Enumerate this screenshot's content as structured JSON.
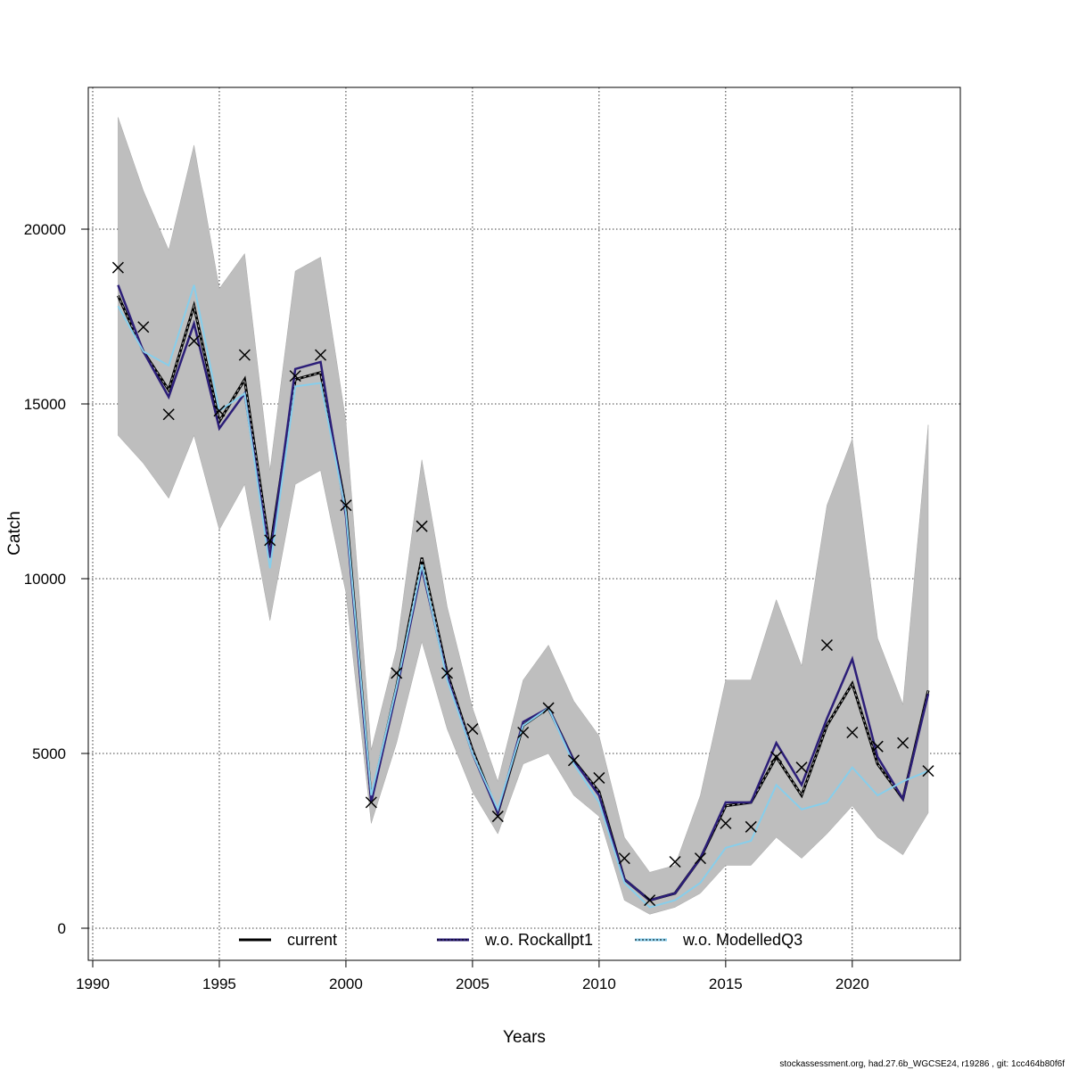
{
  "footer": "stockassessment.org, had.27.6b_WGCSE24, r19286 , git: 1cc464b80f6f",
  "chart_data": {
    "type": "line",
    "xlabel": "Years",
    "ylabel": "Catch",
    "xlim": [
      1990,
      2023
    ],
    "ylim": [
      0,
      23000
    ],
    "xticks": [
      1990,
      1995,
      2000,
      2005,
      2010,
      2015,
      2020
    ],
    "yticks": [
      0,
      5000,
      10000,
      15000,
      20000
    ],
    "grid": true,
    "legend_position": "bottom",
    "x": [
      1991,
      1992,
      1993,
      1994,
      1995,
      1996,
      1997,
      1998,
      1999,
      2000,
      2001,
      2002,
      2003,
      2004,
      2005,
      2006,
      2007,
      2008,
      2009,
      2010,
      2011,
      2012,
      2013,
      2014,
      2015,
      2016,
      2017,
      2018,
      2019,
      2020,
      2021,
      2022,
      2023
    ],
    "band_upper": [
      23200,
      21100,
      19400,
      22400,
      18300,
      19300,
      13100,
      18800,
      19200,
      14500,
      5100,
      8000,
      13400,
      9200,
      6300,
      4200,
      7100,
      8100,
      6500,
      5500,
      2600,
      1600,
      1800,
      3800,
      7100,
      7100,
      9400,
      7500,
      12100,
      14000,
      8300,
      6400,
      14400
    ],
    "band_lower": [
      14100,
      13300,
      12300,
      14100,
      11400,
      12700,
      8800,
      12700,
      13100,
      9600,
      3000,
      5300,
      8200,
      5700,
      3900,
      2700,
      4700,
      5000,
      3800,
      3200,
      800,
      400,
      600,
      1000,
      1800,
      1800,
      2600,
      2000,
      2700,
      3500,
      2600,
      2100,
      3300
    ],
    "series": [
      {
        "name": "current",
        "color": "#000000",
        "values": [
          18100,
          16500,
          15400,
          17800,
          14500,
          15700,
          10800,
          15700,
          15900,
          12000,
          3700,
          6900,
          10600,
          7300,
          5100,
          3300,
          5800,
          6300,
          4800,
          3900,
          1400,
          800,
          1000,
          2000,
          3500,
          3600,
          4900,
          3800,
          5800,
          7000,
          4700,
          3700,
          6800
        ]
      },
      {
        "name": "w.o. Rockallpt1",
        "color": "#2c1e78",
        "values": [
          18400,
          16500,
          15200,
          17300,
          14300,
          15300,
          10600,
          16000,
          16200,
          11800,
          3600,
          6800,
          10300,
          7200,
          5000,
          3300,
          5900,
          6300,
          4800,
          3800,
          1400,
          800,
          1000,
          2000,
          3600,
          3600,
          5300,
          4100,
          6000,
          7700,
          4900,
          3700,
          6700
        ]
      },
      {
        "name": "w.o. ModelledQ3",
        "color": "#87ceeb",
        "values": [
          17800,
          16500,
          16100,
          18400,
          14800,
          15300,
          10300,
          15500,
          15600,
          11900,
          3800,
          6900,
          10400,
          7100,
          5000,
          3400,
          5800,
          6300,
          4700,
          3600,
          1300,
          600,
          800,
          1300,
          2300,
          2500,
          4100,
          3400,
          3600,
          4600,
          3800,
          4200,
          4500
        ]
      }
    ],
    "observations": [
      18900,
      17200,
      14700,
      16800,
      14800,
      16400,
      11100,
      15800,
      16400,
      12100,
      3600,
      7300,
      11500,
      7300,
      5700,
      3200,
      5600,
      6300,
      4800,
      4300,
      2000,
      800,
      1900,
      2000,
      3000,
      2900,
      4900,
      4600,
      8100,
      5600,
      5200,
      5300,
      4500
    ]
  }
}
